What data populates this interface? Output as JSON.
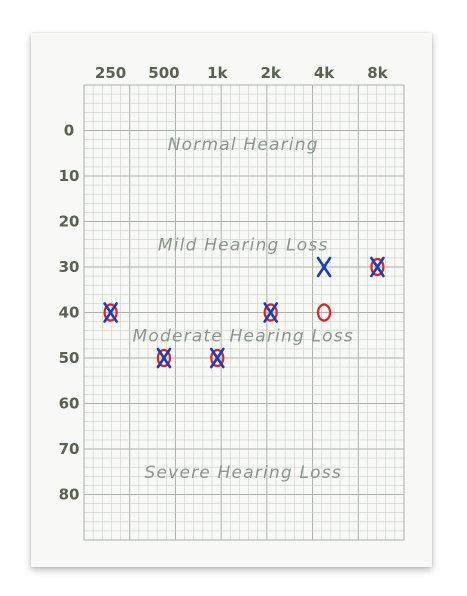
{
  "chart_data": {
    "type": "scatter",
    "title": "",
    "xlabel": "",
    "ylabel": "",
    "x_scale": "log",
    "y_inverted": true,
    "x_ticks": [
      {
        "value": 250,
        "label": "250"
      },
      {
        "value": 500,
        "label": "500"
      },
      {
        "value": 1000,
        "label": "1k"
      },
      {
        "value": 2000,
        "label": "2k"
      },
      {
        "value": 4000,
        "label": "4k"
      },
      {
        "value": 8000,
        "label": "8k"
      }
    ],
    "y_ticks": [
      0,
      10,
      20,
      30,
      40,
      50,
      60,
      70,
      80
    ],
    "xlim": [
      177,
      11300
    ],
    "ylim": [
      -10,
      90
    ],
    "grid": true,
    "zones": [
      {
        "label": "Normal Hearing",
        "freq": 1400,
        "db": 3
      },
      {
        "label": "Mild Hearing Loss",
        "freq": 1400,
        "db": 25
      },
      {
        "label": "Moderate Hearing Loss",
        "freq": 1400,
        "db": 45
      },
      {
        "label": "Severe Hearing Loss",
        "freq": 1400,
        "db": 75
      }
    ],
    "series": [
      {
        "marker": "O",
        "color": "#dd2222",
        "points": [
          {
            "x": 250,
            "y": 40
          },
          {
            "x": 500,
            "y": 50
          },
          {
            "x": 1000,
            "y": 50
          },
          {
            "x": 2000,
            "y": 40
          },
          {
            "x": 4000,
            "y": 40
          },
          {
            "x": 8000,
            "y": 30
          }
        ]
      },
      {
        "marker": "X",
        "color": "#1c3bbf",
        "points": [
          {
            "x": 250,
            "y": 40
          },
          {
            "x": 500,
            "y": 50
          },
          {
            "x": 1000,
            "y": 50
          },
          {
            "x": 2000,
            "y": 40
          },
          {
            "x": 4000,
            "y": 30
          },
          {
            "x": 8000,
            "y": 30
          }
        ]
      }
    ]
  },
  "colors": {
    "grid_minor": "#c9d3c3",
    "grid_major": "#a9b5a3",
    "axis_text": "#59624f",
    "zone_text": "#8b978a"
  }
}
